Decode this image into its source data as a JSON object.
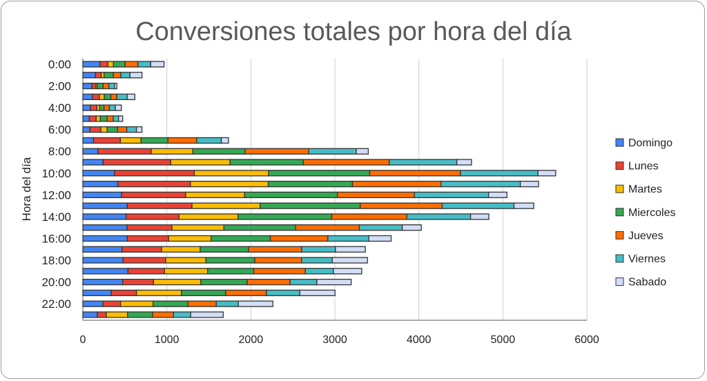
{
  "chart_data": {
    "type": "bar",
    "orientation": "horizontal",
    "stacked": true,
    "title": "Conversiones totales por hora del día",
    "xlabel": "",
    "ylabel": "Hora del día",
    "xlim": [
      0,
      6000
    ],
    "xticks": [
      "0",
      "1000",
      "2000",
      "3000",
      "4000",
      "5000",
      "6000"
    ],
    "grid": true,
    "legend_position": "right",
    "categories": [
      "0:00",
      "1:00",
      "2:00",
      "3:00",
      "4:00",
      "5:00",
      "6:00",
      "7:00",
      "8:00",
      "9:00",
      "10:00",
      "11:00",
      "12:00",
      "13:00",
      "14:00",
      "15:00",
      "16:00",
      "17:00",
      "18:00",
      "19:00",
      "20:00",
      "21:00",
      "22:00",
      "23:00"
    ],
    "visible_category_labels": [
      "0:00",
      "2:00",
      "4:00",
      "6:00",
      "8:00",
      "10:00",
      "12:00",
      "14:00",
      "16:00",
      "18:00",
      "20:00",
      "22:00"
    ],
    "series": [
      {
        "name": "Domingo",
        "color": "#4285F4",
        "values": [
          205,
          150,
          109,
          115,
          90,
          76,
          85,
          127,
          180,
          241,
          376,
          418,
          461,
          529,
          514,
          526,
          528,
          466,
          479,
          537,
          474,
          337,
          238,
          173
        ]
      },
      {
        "name": "Lunes",
        "color": "#EA4335",
        "values": [
          93,
          69,
          47,
          82,
          77,
          83,
          129,
          320,
          634,
          805,
          951,
          863,
          763,
          770,
          631,
          534,
          493,
          471,
          507,
          435,
          367,
          301,
          211,
          106
        ]
      },
      {
        "name": "Martes",
        "color": "#FBBC04",
        "values": [
          66,
          33,
          17,
          58,
          33,
          49,
          76,
          246,
          496,
          705,
          884,
          926,
          702,
          812,
          702,
          619,
          505,
          460,
          479,
          513,
          564,
          535,
          387,
          253
        ]
      },
      {
        "name": "Miercoles",
        "color": "#34A853",
        "values": [
          137,
          110,
          68,
          79,
          52,
          80,
          123,
          321,
          623,
          873,
          1204,
          1002,
          1104,
          1191,
          1116,
          854,
          706,
          575,
          581,
          550,
          551,
          528,
          415,
          298
        ]
      },
      {
        "name": "Jueves",
        "color": "#FF6D01",
        "values": [
          156,
          90,
          69,
          71,
          63,
          74,
          110,
          342,
          756,
          1023,
          1080,
          1054,
          917,
          976,
          894,
          759,
          685,
          633,
          559,
          613,
          512,
          485,
          337,
          249
        ]
      },
      {
        "name": "Viernes",
        "color": "#46BDC6",
        "values": [
          151,
          109,
          68,
          123,
          71,
          63,
          115,
          292,
          566,
          805,
          923,
          945,
          883,
          855,
          759,
          510,
          487,
          402,
          364,
          335,
          318,
          397,
          263,
          205
        ]
      },
      {
        "name": "Sabado",
        "color": "#D2DDF7",
        "values": [
          159,
          143,
          27,
          91,
          72,
          49,
          66,
          86,
          143,
          175,
          211,
          217,
          218,
          235,
          217,
          227,
          266,
          356,
          419,
          337,
          408,
          419,
          411,
          387
        ]
      }
    ]
  }
}
